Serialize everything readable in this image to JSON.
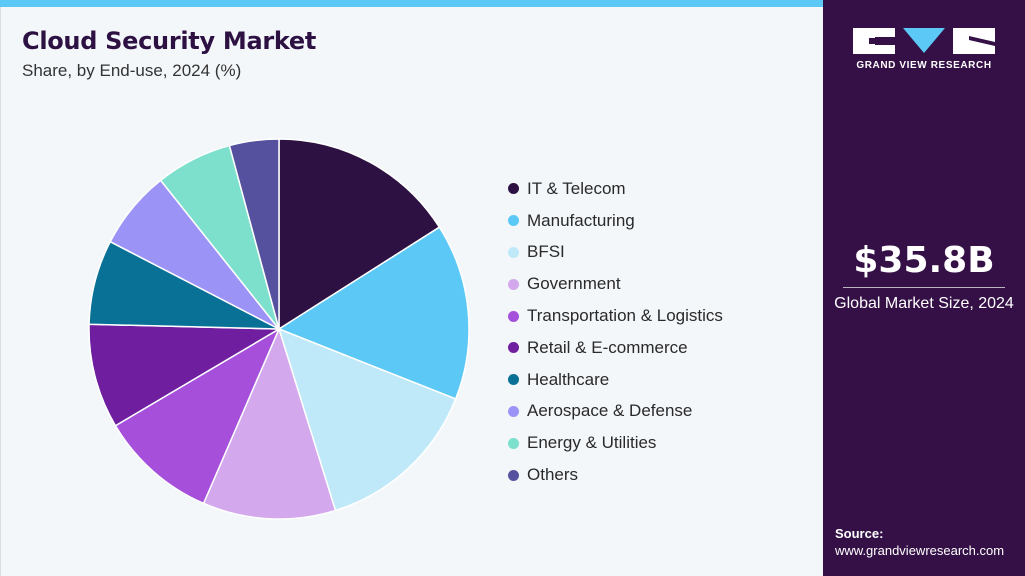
{
  "header": {
    "title": "Cloud Security Market",
    "subtitle": "Share, by End-use, 2024 (%)"
  },
  "brand": {
    "name": "GRAND VIEW RESEARCH",
    "accent_color": "#5cc8f5",
    "panel_color": "#341046"
  },
  "highlight": {
    "value": "$35.8B",
    "label": "Global Market Size, 2024"
  },
  "source": {
    "label": "Source:",
    "url": "www.grandviewresearch.com"
  },
  "chart_data": {
    "type": "pie",
    "title": "Cloud Security Market",
    "subtitle": "Share, by End-use, 2024 (%)",
    "start_angle_deg": 0,
    "direction": "clockwise",
    "legend_position": "right",
    "categories": [
      "IT & Telecom",
      "Manufacturing",
      "BFSI",
      "Government",
      "Transportation & Logistics",
      "Retail & E-commerce",
      "Healthcare",
      "Aerospace & Defense",
      "Energy & Utilities",
      "Others"
    ],
    "values": [
      16.0,
      15.0,
      14.2,
      11.3,
      10.0,
      8.9,
      7.2,
      6.7,
      6.5,
      4.2
    ],
    "colors": [
      "#2d1142",
      "#5cc8f5",
      "#bfe8f8",
      "#d3a8ec",
      "#a54fdb",
      "#6e1e9e",
      "#0a7196",
      "#9b93f5",
      "#7ce0cc",
      "#55519e"
    ]
  }
}
